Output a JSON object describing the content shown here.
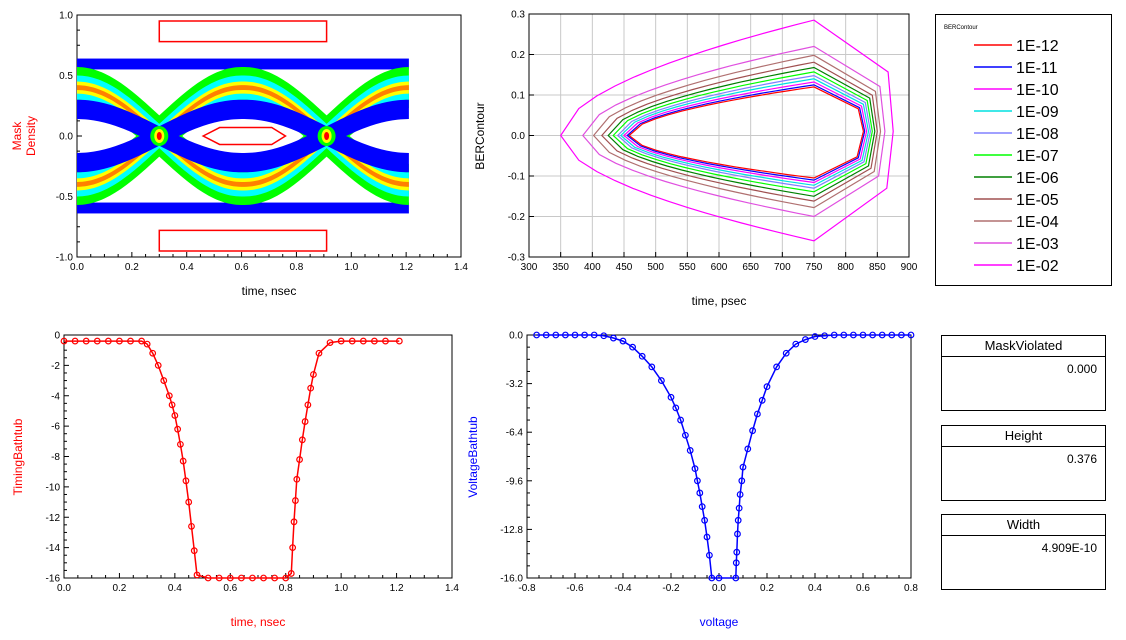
{
  "chart_data": [
    {
      "type": "heatmap",
      "title": "",
      "ylabel_lines": [
        "Mask",
        "Density"
      ],
      "xlabel": "time, nsec",
      "xlim": [
        0.0,
        1.4
      ],
      "ylim": [
        -1.0,
        1.0
      ],
      "xticks": [
        "0.0",
        "0.2",
        "0.4",
        "0.6",
        "0.8",
        "1.0",
        "1.2",
        "1.4"
      ],
      "yticks": [
        "1.0",
        "0.5",
        "0.0",
        "-0.5",
        "-1.0"
      ],
      "xtick_values": [
        0.0,
        0.2,
        0.4,
        0.6,
        0.8,
        1.0,
        1.2,
        1.4
      ],
      "ytick_values": [
        1.0,
        0.5,
        0.0,
        -0.5,
        -1.0
      ],
      "data_extent": {
        "x": [
          0.0,
          1.21
        ],
        "y": [
          -0.64,
          0.64
        ]
      },
      "crossings": [
        0.3,
        0.91
      ],
      "mask_polygons": [
        [
          [
            0.3,
            0.95
          ],
          [
            0.91,
            0.95
          ],
          [
            0.91,
            0.78
          ],
          [
            0.3,
            0.78
          ]
        ],
        [
          [
            0.3,
            -0.78
          ],
          [
            0.91,
            -0.78
          ],
          [
            0.91,
            -0.95
          ],
          [
            0.3,
            -0.95
          ]
        ],
        [
          [
            0.46,
            0.0
          ],
          [
            0.52,
            0.07
          ],
          [
            0.71,
            0.07
          ],
          [
            0.76,
            0.0
          ],
          [
            0.71,
            -0.07
          ],
          [
            0.52,
            -0.07
          ]
        ]
      ],
      "colors": {
        "mask": "#ff0000",
        "low": "#0000ff",
        "mid": "#00ff00",
        "high": "#ff0000",
        "axis_label": "#ff0000"
      }
    },
    {
      "type": "line",
      "title": "",
      "ylabel": "BERContour",
      "xlabel": "time, psec",
      "xlim": [
        300,
        900
      ],
      "ylim": [
        -0.3,
        0.3
      ],
      "xticks": [
        "300",
        "350",
        "400",
        "450",
        "500",
        "550",
        "600",
        "650",
        "700",
        "750",
        "800",
        "850",
        "900"
      ],
      "yticks": [
        "0.3",
        "0.2",
        "0.1",
        "0.0",
        "-0.1",
        "-0.2",
        "-0.3"
      ],
      "xtick_values": [
        300,
        350,
        400,
        450,
        500,
        550,
        600,
        650,
        700,
        750,
        800,
        850,
        900
      ],
      "ytick_values": [
        0.3,
        0.2,
        0.1,
        0.0,
        -0.1,
        -0.2,
        -0.3
      ],
      "legend_title": "BERContour",
      "legend_position": "right",
      "series": [
        {
          "name": "1E-12",
          "color": "#ff0000",
          "left": 458,
          "right": 828,
          "top": 0.12,
          "bottom": -0.105
        },
        {
          "name": "1E-11",
          "color": "#0000ff",
          "left": 455,
          "right": 830,
          "top": 0.125,
          "bottom": -0.11
        },
        {
          "name": "1E-10",
          "color": "#ff00ff",
          "left": 450,
          "right": 833,
          "top": 0.132,
          "bottom": -0.116
        },
        {
          "name": "1E-09",
          "color": "#00e0e0",
          "left": 445,
          "right": 836,
          "top": 0.14,
          "bottom": -0.123
        },
        {
          "name": "1E-08",
          "color": "#8080ff",
          "left": 440,
          "right": 839,
          "top": 0.148,
          "bottom": -0.13
        },
        {
          "name": "1E-07",
          "color": "#00ff00",
          "left": 433,
          "right": 842,
          "top": 0.157,
          "bottom": -0.139
        },
        {
          "name": "1E-06",
          "color": "#008000",
          "left": 425,
          "right": 846,
          "top": 0.168,
          "bottom": -0.15
        },
        {
          "name": "1E-05",
          "color": "#a05050",
          "left": 415,
          "right": 850,
          "top": 0.181,
          "bottom": -0.162
        },
        {
          "name": "1E-04",
          "color": "#b07070",
          "left": 402,
          "right": 855,
          "top": 0.198,
          "bottom": -0.178
        },
        {
          "name": "1E-03",
          "color": "#e050e0",
          "left": 385,
          "right": 862,
          "top": 0.22,
          "bottom": -0.2
        },
        {
          "name": "1E-02",
          "color": "#ff00ff",
          "left": 350,
          "right": 875,
          "top": 0.285,
          "bottom": -0.26
        }
      ]
    },
    {
      "type": "line",
      "title": "",
      "ylabel": "TimingBathtub",
      "xlabel": "time, nsec",
      "xlim": [
        0.0,
        1.4
      ],
      "ylim": [
        -16,
        0
      ],
      "xticks": [
        "0.0",
        "0.2",
        "0.4",
        "0.6",
        "0.8",
        "1.0",
        "1.2",
        "1.4"
      ],
      "yticks": [
        "0",
        "-2",
        "-4",
        "-6",
        "-8",
        "-10",
        "-12",
        "-14",
        "-16"
      ],
      "xtick_values": [
        0.0,
        0.2,
        0.4,
        0.6,
        0.8,
        1.0,
        1.2,
        1.4
      ],
      "ytick_values": [
        0,
        -2,
        -4,
        -6,
        -8,
        -10,
        -12,
        -14,
        -16
      ],
      "color": "#ff0000",
      "series": [
        {
          "name": "",
          "x": [
            0.0,
            0.04,
            0.08,
            0.12,
            0.16,
            0.2,
            0.24,
            0.28,
            0.3,
            0.32,
            0.34,
            0.36,
            0.38,
            0.39,
            0.4,
            0.41,
            0.42,
            0.43,
            0.44,
            0.45,
            0.46,
            0.47,
            0.48,
            0.52,
            0.56,
            0.6,
            0.64,
            0.68,
            0.72,
            0.76,
            0.8,
            0.82,
            0.825,
            0.83,
            0.835,
            0.84,
            0.85,
            0.86,
            0.87,
            0.88,
            0.89,
            0.9,
            0.92,
            0.96,
            1.0,
            1.04,
            1.08,
            1.12,
            1.16,
            1.21
          ],
          "y": [
            -0.4,
            -0.4,
            -0.4,
            -0.4,
            -0.4,
            -0.4,
            -0.4,
            -0.4,
            -0.6,
            -1.2,
            -2.0,
            -3.0,
            -4.0,
            -4.6,
            -5.3,
            -6.2,
            -7.2,
            -8.3,
            -9.6,
            -11.0,
            -12.6,
            -14.2,
            -15.8,
            -16,
            -16,
            -16,
            -16,
            -16,
            -16,
            -16,
            -16,
            -15.7,
            -14.0,
            -12.3,
            -10.9,
            -9.5,
            -8.2,
            -6.9,
            -5.7,
            -4.6,
            -3.5,
            -2.6,
            -1.2,
            -0.5,
            -0.4,
            -0.4,
            -0.4,
            -0.4,
            -0.4,
            -0.4
          ]
        }
      ]
    },
    {
      "type": "line",
      "title": "",
      "ylabel": "VoltageBathtub",
      "xlabel": "voltage",
      "xlim": [
        -0.8,
        0.8
      ],
      "ylim": [
        -16.0,
        0.0
      ],
      "xticks": [
        "-0.8",
        "-0.6",
        "-0.4",
        "-0.2",
        "0.0",
        "0.2",
        "0.4",
        "0.6",
        "0.8"
      ],
      "yticks": [
        "0.0",
        "-3.2",
        "-6.4",
        "-9.6",
        "-12.8",
        "-16.0"
      ],
      "xtick_values": [
        -0.8,
        -0.6,
        -0.4,
        -0.2,
        0.0,
        0.2,
        0.4,
        0.6,
        0.8
      ],
      "ytick_values": [
        0.0,
        -3.2,
        -6.4,
        -9.6,
        -12.8,
        -16.0
      ],
      "color": "#0000ff",
      "series": [
        {
          "name": "",
          "x": [
            -0.76,
            -0.72,
            -0.68,
            -0.64,
            -0.6,
            -0.56,
            -0.52,
            -0.48,
            -0.44,
            -0.4,
            -0.36,
            -0.32,
            -0.28,
            -0.24,
            -0.2,
            -0.18,
            -0.16,
            -0.14,
            -0.12,
            -0.1,
            -0.09,
            -0.08,
            -0.07,
            -0.06,
            -0.05,
            -0.04,
            -0.03,
            0.0,
            0.07,
            0.072,
            0.074,
            0.077,
            0.08,
            0.084,
            0.088,
            0.095,
            0.1,
            0.12,
            0.14,
            0.16,
            0.18,
            0.2,
            0.24,
            0.28,
            0.32,
            0.36,
            0.4,
            0.44,
            0.48,
            0.52,
            0.56,
            0.6,
            0.64,
            0.68,
            0.72,
            0.76,
            0.8
          ],
          "y": [
            0,
            0,
            0,
            0,
            0,
            0,
            0,
            -0.05,
            -0.2,
            -0.4,
            -0.8,
            -1.4,
            -2.1,
            -3.0,
            -4.1,
            -4.8,
            -5.6,
            -6.6,
            -7.6,
            -8.8,
            -9.6,
            -10.4,
            -11.3,
            -12.2,
            -13.3,
            -14.5,
            -16.0,
            -16.0,
            -16.0,
            -15.0,
            -14.3,
            -13.1,
            -12.2,
            -11.4,
            -10.5,
            -9.6,
            -8.7,
            -7.5,
            -6.3,
            -5.2,
            -4.3,
            -3.4,
            -2.1,
            -1.2,
            -0.6,
            -0.3,
            -0.1,
            -0.05,
            0,
            0,
            0,
            0,
            0,
            0,
            0,
            0,
            0
          ]
        }
      ]
    }
  ],
  "tables": [
    {
      "header": "MaskViolated",
      "value": "0.000"
    },
    {
      "header": "Height",
      "value": "0.376"
    },
    {
      "header": "Width",
      "value": "4.909E-10"
    }
  ]
}
